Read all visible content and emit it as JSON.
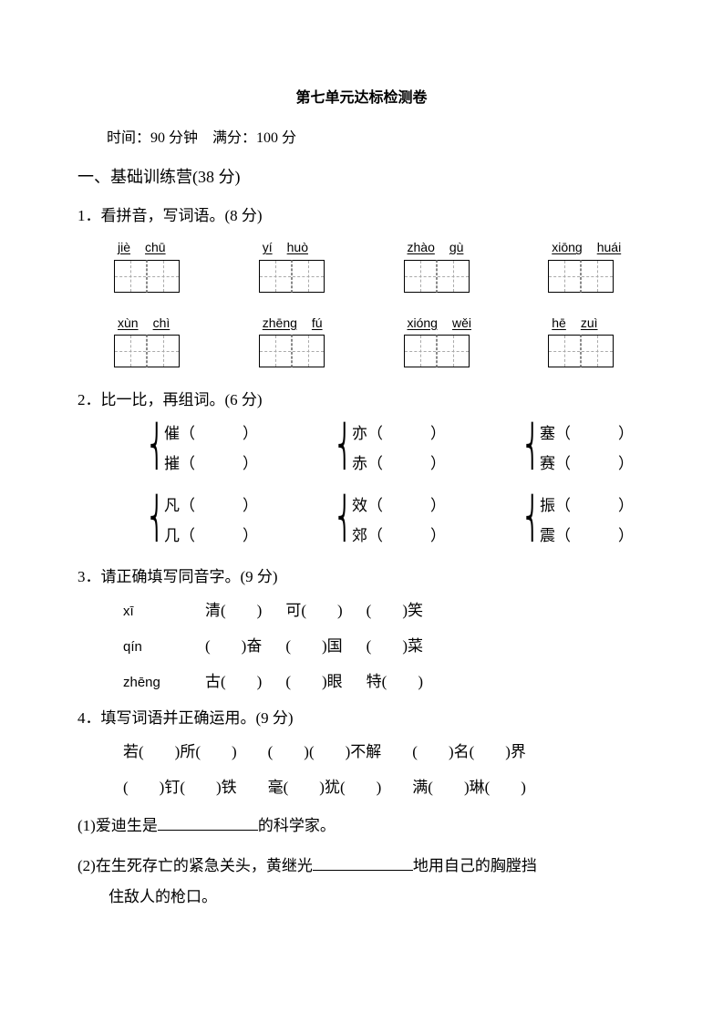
{
  "title": "第七单元达标检测卷",
  "meta": "时间：90 分钟　满分：100 分",
  "section1": "一、基础训练营(38 分)",
  "q1": {
    "prompt": "1．看拼音，写词语。(8 分)",
    "rows": [
      [
        [
          "jiè",
          "chū"
        ],
        [
          "yí",
          "huò"
        ],
        [
          "zhào",
          "gù"
        ],
        [
          "xiōng",
          "huái"
        ]
      ],
      [
        [
          "xùn",
          "chì"
        ],
        [
          "zhēng",
          "fú"
        ],
        [
          "xióng",
          "wěi"
        ],
        [
          "hē",
          "zuì"
        ]
      ]
    ]
  },
  "q2": {
    "prompt": "2．比一比，再组词。(6 分)",
    "rows": [
      [
        [
          "催",
          "摧"
        ],
        [
          "亦",
          "赤"
        ],
        [
          "塞",
          "赛"
        ]
      ],
      [
        [
          "凡",
          "几"
        ],
        [
          "效",
          "郊"
        ],
        [
          "振",
          "震"
        ]
      ]
    ]
  },
  "q3": {
    "prompt": "3．请正确填写同音字。(9 分)",
    "rows": [
      {
        "py": "xī",
        "items": [
          "清(　　)",
          "可(　　)",
          "(　　)笑"
        ]
      },
      {
        "py": "qín",
        "items": [
          "(　　)奋",
          "(　　)国",
          "(　　)菜"
        ]
      },
      {
        "py": "zhēng",
        "items": [
          "古(　　)",
          "(　　)眼",
          "特(　　)"
        ]
      }
    ]
  },
  "q4": {
    "prompt": "4．填写词语并正确运用。(9 分)",
    "line1": "若(　　)所(　　)　　(　　)(　　)不解　　(　　)名(　　)界",
    "line2": "(　　)钉(　　)铁　　毫(　　)犹(　　)　　满(　　)琳(　　)",
    "subs": [
      "(1)爱迪生是____________的科学家。",
      "(2)在生死存亡的紧急关头，黄继光____________地用自己的胸膛挡住敌人的枪口。"
    ]
  }
}
